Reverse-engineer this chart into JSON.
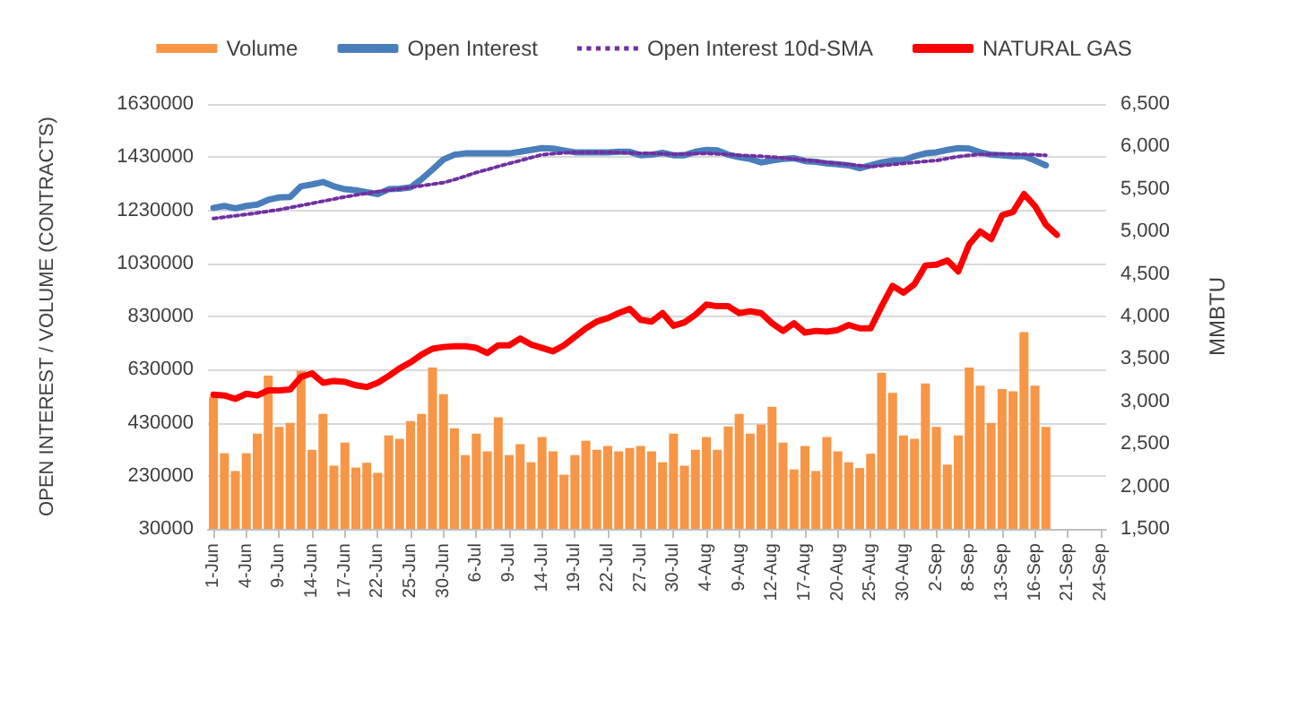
{
  "chart_data": {
    "type": "bar",
    "ylabel": "OPEN INTEREST / VOLUME (CONTRACTS)",
    "y2label": "MMBTU",
    "categories": [
      "1-Jun",
      null,
      null,
      "4-Jun",
      null,
      null,
      "9-Jun",
      null,
      null,
      "14-Jun",
      null,
      null,
      "17-Jun",
      null,
      null,
      "22-Jun",
      null,
      null,
      "25-Jun",
      null,
      null,
      "30-Jun",
      null,
      null,
      "6-Jul",
      null,
      null,
      "9-Jul",
      null,
      null,
      "14-Jul",
      null,
      null,
      "19-Jul",
      null,
      null,
      "22-Jul",
      null,
      null,
      "27-Jul",
      null,
      null,
      "30-Jul",
      null,
      null,
      "4-Aug",
      null,
      null,
      "9-Aug",
      null,
      null,
      "12-Aug",
      null,
      null,
      "17-Aug",
      null,
      null,
      "20-Aug",
      null,
      null,
      "25-Aug",
      null,
      null,
      "30-Aug",
      null,
      null,
      "2-Sep",
      null,
      null,
      "8-Sep",
      null,
      null,
      "13-Sep",
      null,
      null,
      "16-Sep",
      null,
      null,
      "21-Sep",
      null,
      null,
      "24-Sep"
    ],
    "series": [
      {
        "name": "Volume",
        "color": "#f79646",
        "values": [
          528000,
          315000,
          248000,
          315000,
          389000,
          607000,
          414000,
          429000,
          625000,
          328000,
          463000,
          268000,
          355000,
          261000,
          279000,
          241000,
          382000,
          369000,
          436000,
          463000,
          638000,
          537000,
          409000,
          308000,
          389000,
          322000,
          450000,
          308000,
          349000,
          281000,
          376000,
          322000,
          234000,
          308000,
          362000,
          328000,
          342000,
          322000,
          335000,
          342000,
          322000,
          281000,
          389000,
          268000,
          328000,
          376000,
          328000,
          416000,
          463000,
          389000,
          423000,
          490000,
          355000,
          254000,
          342000,
          248000,
          376000,
          322000,
          281000,
          259000,
          313000,
          618000,
          542000,
          382000,
          369000,
          578000,
          414000,
          272000,
          382000,
          638000,
          569000,
          429000,
          557000,
          548000,
          771000,
          569000,
          414000,
          null,
          null,
          null,
          null,
          null
        ]
      },
      {
        "name": "Open Interest",
        "type": "line",
        "color": "#4a7ebb",
        "line_style": "solid",
        "values": [
          1239000,
          1246000,
          1237000,
          1246000,
          1251000,
          1269000,
          1278000,
          1280000,
          1320000,
          1327000,
          1336000,
          1320000,
          1309000,
          1305000,
          1298000,
          1291000,
          1309000,
          1311000,
          1316000,
          1347000,
          1383000,
          1421000,
          1439000,
          1444000,
          1444000,
          1444000,
          1444000,
          1444000,
          1450000,
          1457000,
          1464000,
          1462000,
          1455000,
          1448000,
          1448000,
          1448000,
          1448000,
          1450000,
          1450000,
          1437000,
          1439000,
          1446000,
          1437000,
          1437000,
          1450000,
          1457000,
          1455000,
          1439000,
          1430000,
          1423000,
          1410000,
          1417000,
          1423000,
          1426000,
          1415000,
          1412000,
          1406000,
          1403000,
          1399000,
          1388000,
          1399000,
          1410000,
          1417000,
          1419000,
          1433000,
          1444000,
          1448000,
          1457000,
          1464000,
          1462000,
          1448000,
          1439000,
          1437000,
          1433000,
          1433000,
          1417000,
          1399000,
          null,
          null,
          null,
          null,
          null
        ]
      },
      {
        "name": "Open Interest 10d-SMA",
        "type": "line",
        "color": "#7030a0",
        "line_style": "dotted",
        "values": [
          1199000,
          1204000,
          1209000,
          1214000,
          1220000,
          1226000,
          1232000,
          1240000,
          1248000,
          1256000,
          1264000,
          1272000,
          1280000,
          1287000,
          1294000,
          1300000,
          1305000,
          1310000,
          1316000,
          1322000,
          1328000,
          1334000,
          1345000,
          1358000,
          1372000,
          1383000,
          1395000,
          1406000,
          1417000,
          1428000,
          1439000,
          1443000,
          1446000,
          1448000,
          1448000,
          1448000,
          1448000,
          1447000,
          1446000,
          1444000,
          1444000,
          1443000,
          1441000,
          1442000,
          1443000,
          1444000,
          1442000,
          1440000,
          1437000,
          1435000,
          1433000,
          1430000,
          1427000,
          1423000,
          1419000,
          1415000,
          1410000,
          1406000,
          1402000,
          1398000,
          1394000,
          1398000,
          1402000,
          1406000,
          1410000,
          1414000,
          1417000,
          1425000,
          1432000,
          1437000,
          1440000,
          1441000,
          1442000,
          1441000,
          1440000,
          1439000,
          1437000,
          null,
          null,
          null,
          null,
          null
        ]
      },
      {
        "name": "NATURAL GAS",
        "type": "line",
        "axis": "y2",
        "color": "#ff0000",
        "line_style": "solid",
        "values": [
          3080,
          3070,
          3030,
          3090,
          3070,
          3130,
          3130,
          3140,
          3290,
          3330,
          3220,
          3240,
          3230,
          3190,
          3170,
          3220,
          3300,
          3390,
          3460,
          3550,
          3620,
          3640,
          3650,
          3650,
          3630,
          3570,
          3660,
          3660,
          3740,
          3670,
          3630,
          3590,
          3660,
          3760,
          3860,
          3940,
          3980,
          4040,
          4090,
          3960,
          3940,
          4040,
          3890,
          3930,
          4020,
          4140,
          4120,
          4120,
          4040,
          4060,
          4040,
          3920,
          3830,
          3920,
          3810,
          3830,
          3820,
          3840,
          3900,
          3860,
          3860,
          4120,
          4360,
          4280,
          4380,
          4600,
          4610,
          4660,
          4530,
          4850,
          5000,
          4910,
          5190,
          5230,
          5440,
          5300,
          5080,
          4960,
          null,
          null,
          null,
          null
        ]
      }
    ],
    "ylim": [
      30000,
      1630000
    ],
    "yticks": [
      30000,
      230000,
      430000,
      630000,
      830000,
      1030000,
      1230000,
      1430000,
      1630000
    ],
    "y2lim": [
      1500,
      6500
    ],
    "y2ticks": [
      {
        "value": 1500,
        "label": "1,500"
      },
      {
        "value": 2000,
        "label": "2,000"
      },
      {
        "value": 2500,
        "label": "2,500"
      },
      {
        "value": 3000,
        "label": "3,000"
      },
      {
        "value": 3500,
        "label": "3,500"
      },
      {
        "value": 4000,
        "label": "4,000"
      },
      {
        "value": 4500,
        "label": "4,500"
      },
      {
        "value": 5000,
        "label": "5,000"
      },
      {
        "value": 5500,
        "label": "5,500"
      },
      {
        "value": 6000,
        "label": "6,000"
      },
      {
        "value": 6500,
        "label": "6,500"
      }
    ],
    "grid": "y",
    "legend": "top",
    "marker": "none"
  }
}
